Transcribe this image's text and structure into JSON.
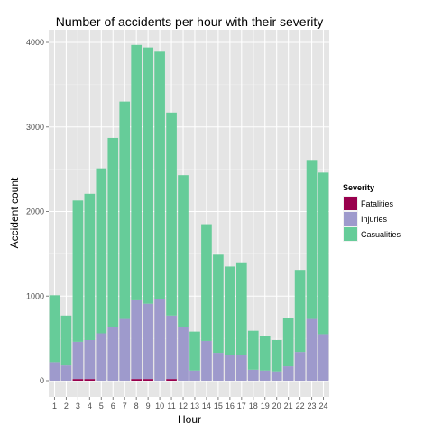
{
  "chart_data": {
    "type": "bar",
    "stacked": true,
    "title": "Number of accidents per hour with their severity",
    "xlabel": "Hour",
    "ylabel": "Accident count",
    "categories": [
      "1",
      "2",
      "3",
      "4",
      "5",
      "6",
      "7",
      "8",
      "9",
      "10",
      "11",
      "12",
      "13",
      "14",
      "15",
      "16",
      "17",
      "18",
      "19",
      "20",
      "21",
      "22",
      "23",
      "24"
    ],
    "yticks": [
      0,
      1000,
      2000,
      3000,
      4000
    ],
    "ylim": [
      -200,
      4150
    ],
    "grid": true,
    "legend": {
      "title": "Severity",
      "placement": "right",
      "entries": [
        {
          "name": "Fatalities",
          "color": "#99004d"
        },
        {
          "name": "Injuries",
          "color": "#9e9acc"
        },
        {
          "name": "Casualities",
          "color": "#66cc99"
        }
      ]
    },
    "series": [
      {
        "name": "Fatalities",
        "color": "#99004d",
        "values": [
          0,
          0,
          20,
          20,
          0,
          0,
          0,
          20,
          20,
          0,
          20,
          0,
          0,
          0,
          0,
          0,
          0,
          0,
          0,
          0,
          0,
          0,
          0,
          0
        ]
      },
      {
        "name": "Injuries",
        "color": "#9e9acc",
        "values": [
          220,
          180,
          440,
          460,
          560,
          640,
          730,
          930,
          890,
          960,
          750,
          640,
          120,
          470,
          330,
          300,
          300,
          130,
          120,
          110,
          170,
          340,
          730,
          550
        ]
      },
      {
        "name": "Casualities",
        "color": "#66cc99",
        "values": [
          790,
          590,
          1670,
          1730,
          1950,
          2230,
          2570,
          3020,
          3030,
          2930,
          2400,
          1790,
          460,
          1380,
          1160,
          1050,
          1100,
          460,
          410,
          370,
          570,
          970,
          1880,
          1910
        ]
      }
    ]
  }
}
